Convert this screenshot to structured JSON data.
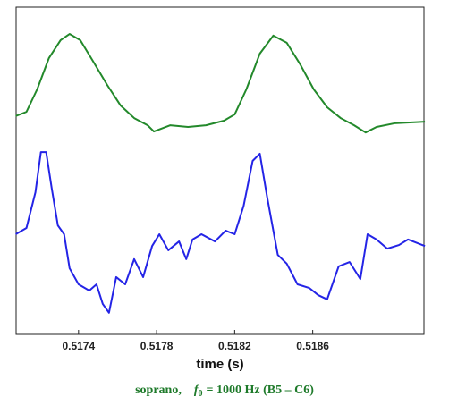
{
  "chart_data": {
    "type": "line",
    "xlabel": "time  (s)",
    "caption": {
      "voice": "soprano,",
      "symbol": "f",
      "subscript": "0",
      "rest": "= 1000 Hz (B5 – C6)"
    },
    "xlim": [
      0.51708,
      0.51917
    ],
    "xticks": [
      0.5174,
      0.5178,
      0.5182,
      0.5186
    ],
    "ylim": [
      0,
      100
    ],
    "grid": false,
    "series": [
      {
        "color": "#23892b",
        "x": [
          0.517078,
          0.517133,
          0.517188,
          0.517248,
          0.517308,
          0.517354,
          0.517409,
          0.517478,
          0.517547,
          0.517616,
          0.517685,
          0.517754,
          0.517786,
          0.517869,
          0.517961,
          0.518053,
          0.518145,
          0.5182,
          0.51826,
          0.518329,
          0.518398,
          0.518467,
          0.518536,
          0.518605,
          0.518674,
          0.518743,
          0.518812,
          0.518871,
          0.518927,
          0.519019,
          0.519175
        ],
        "values": [
          66.7,
          68.0,
          74.9,
          84.4,
          89.9,
          91.8,
          89.9,
          83.1,
          76.2,
          69.9,
          66.1,
          63.9,
          62.0,
          63.9,
          63.4,
          63.9,
          65.3,
          67.2,
          74.9,
          85.8,
          91.3,
          89.1,
          82.5,
          74.9,
          69.4,
          66.1,
          63.9,
          61.7,
          63.4,
          64.5,
          65.0
        ]
      },
      {
        "color": "#2424e6",
        "x": [
          0.517078,
          0.517133,
          0.517179,
          0.517207,
          0.517234,
          0.517262,
          0.517294,
          0.517326,
          0.517354,
          0.5174,
          0.517455,
          0.517492,
          0.517524,
          0.517556,
          0.517593,
          0.517639,
          0.517685,
          0.517731,
          0.517777,
          0.517814,
          0.51786,
          0.517915,
          0.517952,
          0.517984,
          0.51803,
          0.518099,
          0.518154,
          0.5182,
          0.518246,
          0.518292,
          0.518329,
          0.518366,
          0.518421,
          0.518467,
          0.518522,
          0.518582,
          0.518628,
          0.518674,
          0.518733,
          0.518789,
          0.518844,
          0.518881,
          0.518927,
          0.518982,
          0.519042,
          0.519088,
          0.519175
        ],
        "values": [
          30.6,
          32.5,
          43.4,
          55.7,
          55.7,
          44.8,
          33.3,
          30.6,
          20.2,
          15.3,
          13.4,
          15.3,
          9.3,
          6.6,
          17.5,
          15.3,
          23.0,
          17.5,
          27.0,
          30.6,
          25.7,
          28.4,
          23.0,
          29.0,
          30.6,
          28.4,
          31.7,
          30.6,
          39.3,
          53.0,
          55.2,
          42.1,
          24.3,
          21.6,
          15.3,
          14.2,
          12.0,
          10.7,
          20.8,
          22.1,
          16.9,
          30.6,
          29.0,
          26.2,
          27.3,
          29.0,
          27.0
        ]
      }
    ]
  }
}
